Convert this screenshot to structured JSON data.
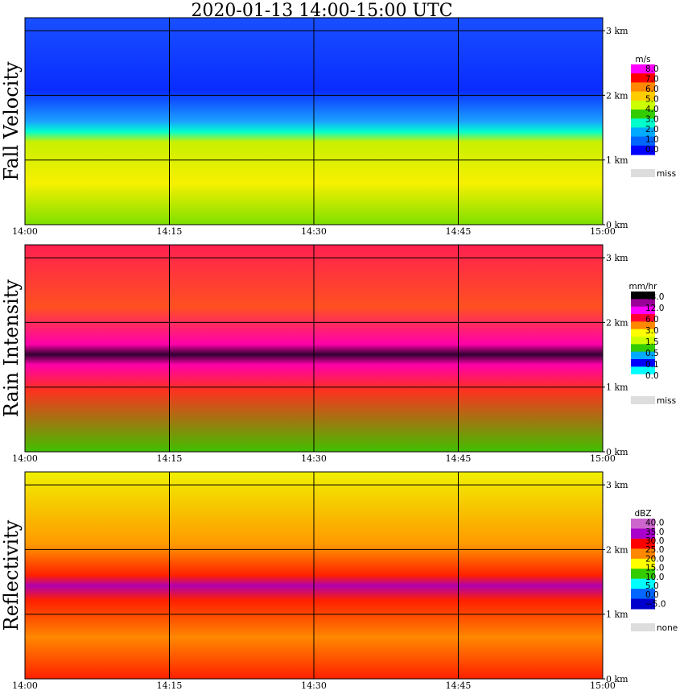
{
  "title": "2020-01-13   14:00-15:00 UTC",
  "chart_data": [
    {
      "type": "heatmap",
      "ylabel": "Fall Velocity",
      "x_ticks": [
        "14:00",
        "14:15",
        "14:30",
        "14:45",
        "15:00"
      ],
      "x_range": [
        "14:00",
        "15:00"
      ],
      "y_ticks": [
        "0 km",
        "1 km",
        "2 km",
        "3 km"
      ],
      "y_range_km": [
        0,
        3.2
      ],
      "grid": true,
      "legend": {
        "placement": "right",
        "unit": "m/s",
        "levels": [
          "8.0",
          "7.0",
          "6.0",
          "5.0",
          "4.0",
          "3.0",
          "2.0",
          "1.0",
          "0.0"
        ],
        "colors": [
          "#ff00ff",
          "#ff0000",
          "#ff8800",
          "#ffcc00",
          "#ccff00",
          "#33cc00",
          "#00ffcc",
          "#00aaff",
          "#0066ff",
          "#0000ff"
        ],
        "missing_label": "miss",
        "missing_color": "#dddddd"
      }
    },
    {
      "type": "heatmap",
      "ylabel": "Rain Intensity",
      "x_ticks": [
        "14:00",
        "14:15",
        "14:30",
        "14:45",
        "15:00"
      ],
      "x_range": [
        "14:00",
        "15:00"
      ],
      "y_ticks": [
        "0 km",
        "1 km",
        "2 km",
        "3 km"
      ],
      "y_range_km": [
        0,
        3.2
      ],
      "grid": true,
      "legend": {
        "placement": "right",
        "unit": "mm/hr",
        "levels": [
          "48.0",
          "12.0",
          "6.0",
          "3.0",
          "1.5",
          "0.5",
          "0.1",
          "0.0"
        ],
        "colors": [
          "#000000",
          "#990099",
          "#ff00ff",
          "#ff0033",
          "#ff8800",
          "#ffff00",
          "#ccff00",
          "#33cc00",
          "#00aaff",
          "#0000ff",
          "#00ffff",
          "#ffffff"
        ],
        "missing_label": "miss",
        "missing_color": "#dddddd"
      }
    },
    {
      "type": "heatmap",
      "ylabel": "Reflectivity",
      "x_ticks": [
        "14:00",
        "14:15",
        "14:30",
        "14:45",
        "15:00"
      ],
      "x_range": [
        "14:00",
        "15:00"
      ],
      "y_ticks": [
        "0 km",
        "1 km",
        "2 km",
        "3 km"
      ],
      "y_range_km": [
        0,
        3.2
      ],
      "grid": true,
      "legend": {
        "placement": "right",
        "unit": "dBZ",
        "levels": [
          "40.0",
          "35.0",
          "30.0",
          "25.0",
          "20.0",
          "15.0",
          "10.0",
          "5.0",
          "0.0",
          "−5.0"
        ],
        "colors": [
          "#cc66cc",
          "#aa00cc",
          "#ff0000",
          "#ff8800",
          "#ffff00",
          "#33cc00",
          "#00ffff",
          "#0066ff",
          "#0000cc"
        ],
        "missing_label": "none",
        "missing_color": "#dddddd"
      }
    }
  ]
}
